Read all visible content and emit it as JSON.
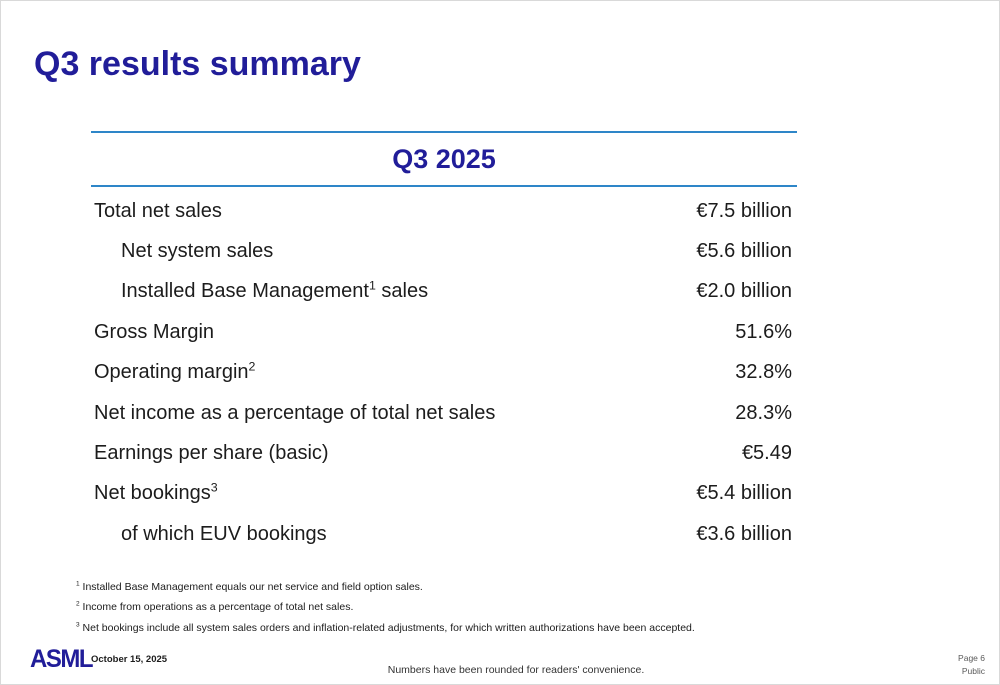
{
  "title": "Q3 results summary",
  "colors": {
    "brand_navy": "#211D99",
    "rule_blue": "#2E86C8",
    "body_text": "#1C1C1C"
  },
  "table": {
    "column_header": "Q3 2025",
    "rows": [
      {
        "pre": "Total net sales",
        "sup": "",
        "post": "",
        "value": "€7.5 billion"
      },
      {
        "pre": "Net system sales",
        "sup": "",
        "post": "",
        "value": "€5.6 billion"
      },
      {
        "pre": "Installed Base Management",
        "sup": "1",
        "post": " sales",
        "value": "€2.0 billion"
      },
      {
        "pre": "Gross Margin",
        "sup": "",
        "post": "",
        "value": "51.6%"
      },
      {
        "pre": "Operating margin",
        "sup": "2",
        "post": "",
        "value": "32.8%"
      },
      {
        "pre": "Net income as a percentage of total net sales",
        "sup": "",
        "post": "",
        "value": "28.3%"
      },
      {
        "pre": "Earnings per share (basic)",
        "sup": "",
        "post": "",
        "value": "€5.49"
      },
      {
        "pre": "Net bookings",
        "sup": "3",
        "post": "",
        "value": "€5.4 billion"
      },
      {
        "pre": "of which EUV bookings",
        "sup": "",
        "post": "",
        "value": "€3.6 billion"
      }
    ]
  },
  "footnotes": [
    {
      "sup": "1",
      "text": " Installed Base Management equals our net service and field option sales."
    },
    {
      "sup": "2",
      "text": " Income from operations as a percentage of total net sales."
    },
    {
      "sup": "3",
      "text": " Net bookings include all system sales orders and inflation-related adjustments, for which written authorizations have been accepted."
    }
  ],
  "footer": {
    "logo": "ASML",
    "date": "October 15, 2025",
    "note": "Numbers have been rounded for readers' convenience.",
    "page": "Page 6",
    "classification": "Public"
  }
}
